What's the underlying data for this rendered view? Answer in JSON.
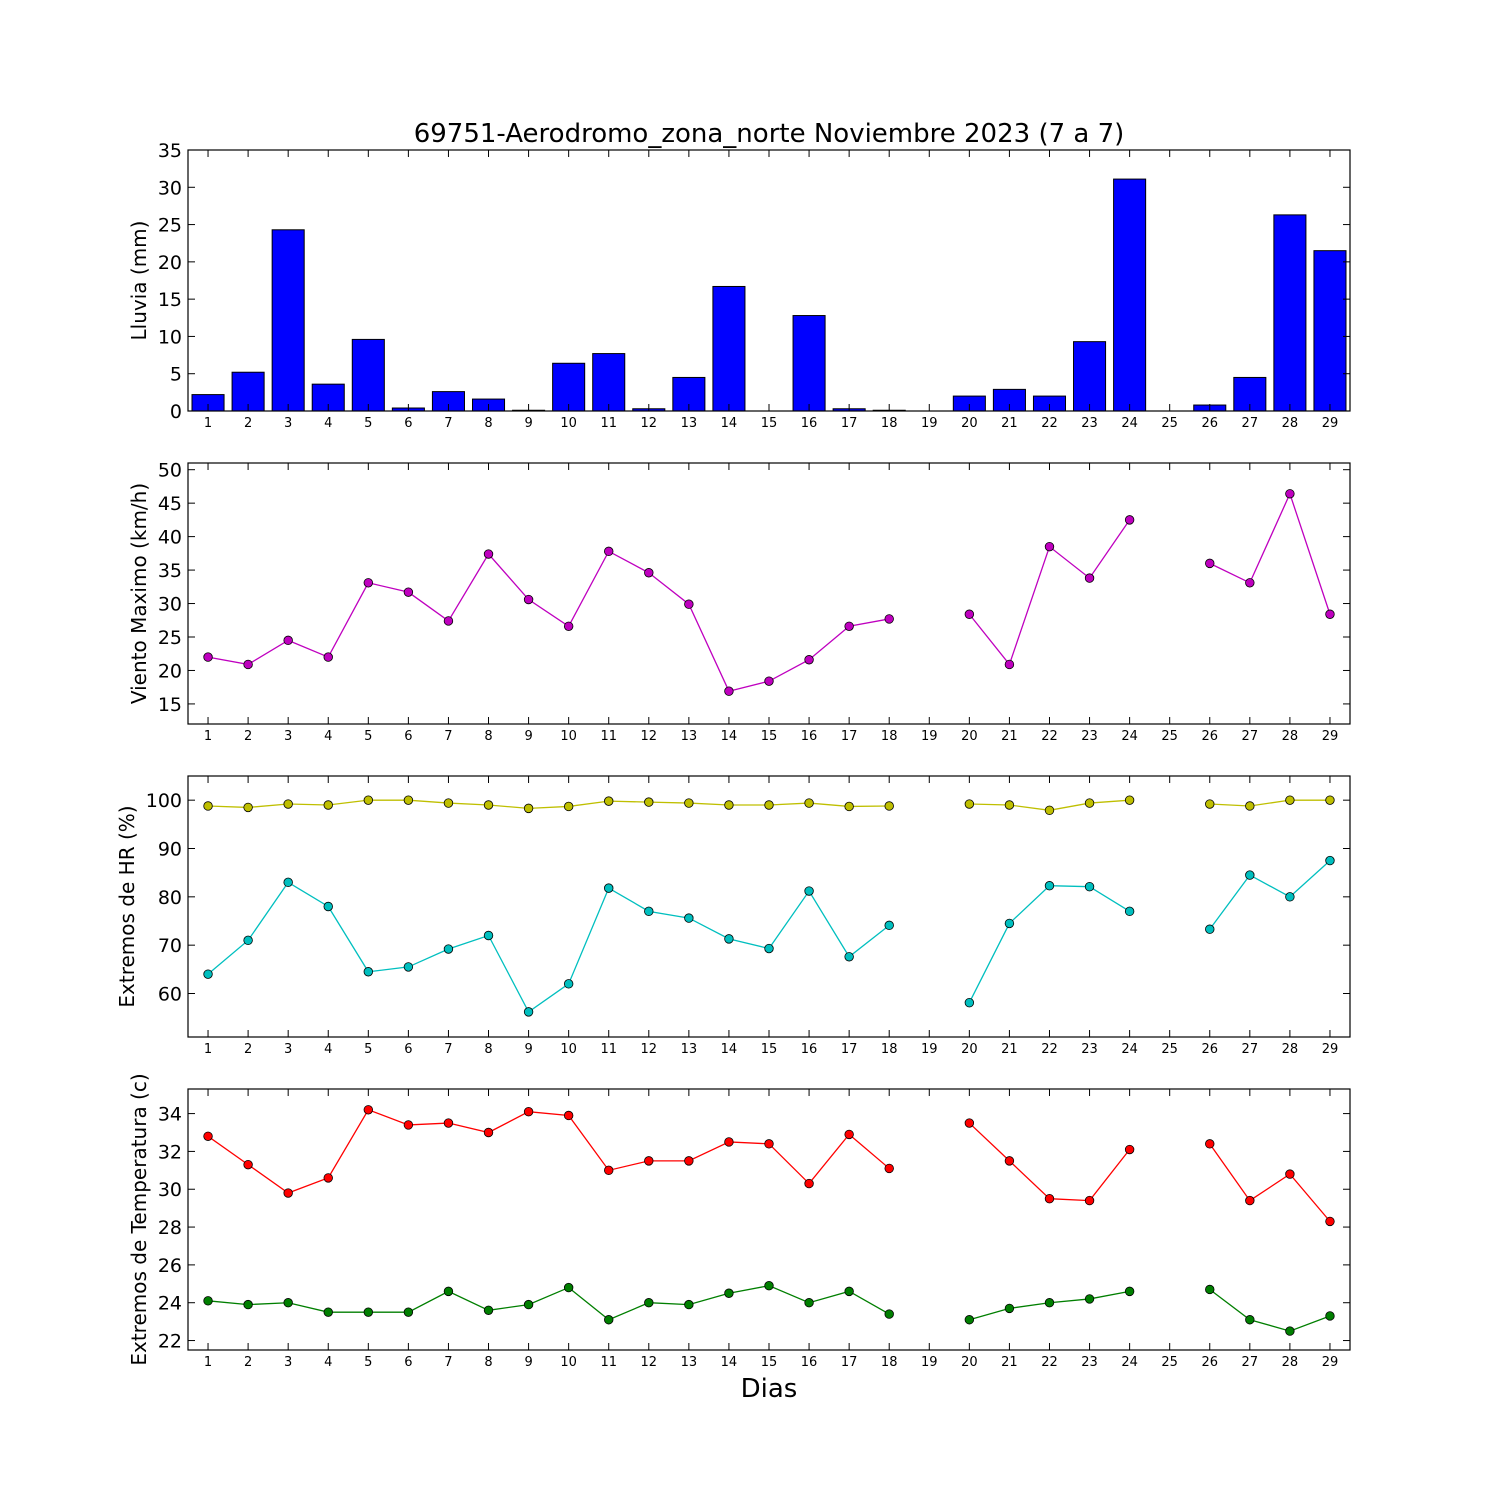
{
  "title": "69751-Aerodromo_zona_norte Noviembre 2023  (7 a 7)",
  "xlabel": "Dias",
  "chart_data": [
    {
      "type": "bar",
      "ylabel": "Lluvia (mm)",
      "ylim": [
        0,
        35
      ],
      "yticks": [
        0,
        5,
        10,
        15,
        20,
        25,
        30,
        35
      ],
      "xlim": [
        0.5,
        29.5
      ],
      "xticks": [
        1,
        2,
        3,
        4,
        5,
        6,
        7,
        8,
        9,
        10,
        11,
        12,
        13,
        14,
        15,
        16,
        17,
        18,
        19,
        20,
        21,
        22,
        23,
        24,
        25,
        26,
        27,
        28,
        29
      ],
      "x": [
        1,
        2,
        3,
        4,
        5,
        6,
        7,
        8,
        9,
        10,
        11,
        12,
        13,
        14,
        15,
        16,
        17,
        18,
        19,
        20,
        21,
        22,
        23,
        24,
        25,
        26,
        27,
        28,
        29
      ],
      "series": [
        {
          "color": "#0000ff",
          "values": [
            2.2,
            5.2,
            24.3,
            3.6,
            9.6,
            0.4,
            2.6,
            1.6,
            0.1,
            6.4,
            7.7,
            0.3,
            4.5,
            16.7,
            0,
            12.8,
            0.3,
            0.1,
            0,
            2.0,
            2.9,
            2.0,
            9.3,
            31.1,
            0,
            0.8,
            4.5,
            26.3,
            21.5
          ]
        }
      ]
    },
    {
      "type": "line",
      "ylabel": "Viento Maximo (km/h)",
      "ylim": [
        12,
        51
      ],
      "yticks": [
        15,
        20,
        25,
        30,
        35,
        40,
        45,
        50
      ],
      "xlim": [
        0.5,
        29.5
      ],
      "xticks": [
        1,
        2,
        3,
        4,
        5,
        6,
        7,
        8,
        9,
        10,
        11,
        12,
        13,
        14,
        15,
        16,
        17,
        18,
        19,
        20,
        21,
        22,
        23,
        24,
        25,
        26,
        27,
        28,
        29
      ],
      "x": [
        1,
        2,
        3,
        4,
        5,
        6,
        7,
        8,
        9,
        10,
        11,
        12,
        13,
        14,
        15,
        16,
        17,
        18,
        19,
        20,
        21,
        22,
        23,
        24,
        25,
        26,
        27,
        28,
        29
      ],
      "series": [
        {
          "color": "#bf00bf",
          "values": [
            22.0,
            20.9,
            24.5,
            22.0,
            33.1,
            31.7,
            27.4,
            37.4,
            30.6,
            26.6,
            37.8,
            34.6,
            29.9,
            16.9,
            18.4,
            21.6,
            26.6,
            27.7,
            null,
            28.4,
            20.9,
            38.5,
            33.8,
            42.5,
            null,
            36.0,
            33.1,
            46.4,
            28.4
          ]
        }
      ]
    },
    {
      "type": "line",
      "ylabel": "Extremos de HR (%)",
      "ylim": [
        51,
        105
      ],
      "yticks": [
        60,
        70,
        80,
        90,
        100
      ],
      "xlim": [
        0.5,
        29.5
      ],
      "xticks": [
        1,
        2,
        3,
        4,
        5,
        6,
        7,
        8,
        9,
        10,
        11,
        12,
        13,
        14,
        15,
        16,
        17,
        18,
        19,
        20,
        21,
        22,
        23,
        24,
        25,
        26,
        27,
        28,
        29
      ],
      "x": [
        1,
        2,
        3,
        4,
        5,
        6,
        7,
        8,
        9,
        10,
        11,
        12,
        13,
        14,
        15,
        16,
        17,
        18,
        19,
        20,
        21,
        22,
        23,
        24,
        25,
        26,
        27,
        28,
        29
      ],
      "series": [
        {
          "color": "#bfbf00",
          "values": [
            98.8,
            98.5,
            99.2,
            99.0,
            100,
            100,
            99.4,
            99.0,
            98.3,
            98.7,
            99.8,
            99.6,
            99.4,
            99.0,
            99.0,
            99.4,
            98.7,
            98.8,
            null,
            99.2,
            99.0,
            97.9,
            99.4,
            100,
            null,
            99.2,
            98.8,
            100,
            100
          ]
        },
        {
          "color": "#00bfbf",
          "values": [
            64.0,
            71.0,
            83.0,
            78.0,
            64.5,
            65.5,
            69.2,
            72.0,
            56.2,
            62.0,
            81.8,
            77.0,
            75.6,
            71.3,
            69.3,
            81.2,
            67.6,
            74.1,
            null,
            58.1,
            74.5,
            82.3,
            82.1,
            77.0,
            null,
            73.3,
            84.5,
            80.0,
            87.5
          ]
        }
      ]
    },
    {
      "type": "line",
      "ylabel": "Extremos de Temperatura (c)",
      "ylim": [
        21.5,
        35.3
      ],
      "yticks": [
        22,
        24,
        26,
        28,
        30,
        32,
        34
      ],
      "xlim": [
        0.5,
        29.5
      ],
      "xticks": [
        1,
        2,
        3,
        4,
        5,
        6,
        7,
        8,
        9,
        10,
        11,
        12,
        13,
        14,
        15,
        16,
        17,
        18,
        19,
        20,
        21,
        22,
        23,
        24,
        25,
        26,
        27,
        28,
        29
      ],
      "x": [
        1,
        2,
        3,
        4,
        5,
        6,
        7,
        8,
        9,
        10,
        11,
        12,
        13,
        14,
        15,
        16,
        17,
        18,
        19,
        20,
        21,
        22,
        23,
        24,
        25,
        26,
        27,
        28,
        29
      ],
      "series": [
        {
          "color": "#ff0000",
          "values": [
            32.8,
            31.3,
            29.8,
            30.6,
            34.2,
            33.4,
            33.5,
            33.0,
            34.1,
            33.9,
            31.0,
            31.5,
            31.5,
            32.5,
            32.4,
            30.3,
            32.9,
            31.1,
            null,
            33.5,
            31.5,
            29.5,
            29.4,
            32.1,
            null,
            32.4,
            29.4,
            30.8,
            28.3
          ]
        },
        {
          "color": "#007f00",
          "values": [
            24.1,
            23.9,
            24.0,
            23.5,
            23.5,
            23.5,
            24.6,
            23.6,
            23.9,
            24.8,
            23.1,
            24.0,
            23.9,
            24.5,
            24.9,
            24.0,
            24.6,
            23.4,
            null,
            23.1,
            23.7,
            24.0,
            24.2,
            24.6,
            null,
            24.7,
            23.1,
            22.5,
            23.3
          ]
        }
      ]
    }
  ]
}
